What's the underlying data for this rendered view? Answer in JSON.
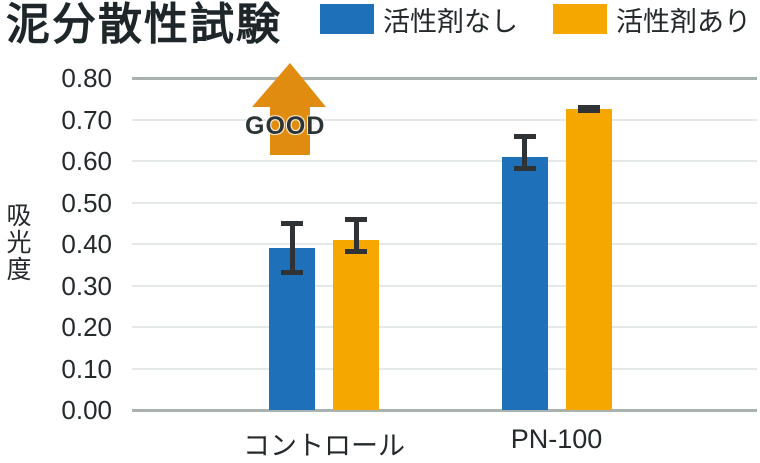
{
  "title": "泥分散性試験",
  "legend": [
    {
      "label": "活性剤なし",
      "color": "#1e70b8"
    },
    {
      "label": "活性剤あり",
      "color": "#f5a700"
    }
  ],
  "annotation": {
    "text": "GOOD",
    "arrow_color": "#df8c10",
    "text_color": "#2d3436"
  },
  "chart_data": {
    "type": "bar",
    "title": "泥分散性試験",
    "categories": [
      "コントロール",
      "PN-100"
    ],
    "series": [
      {
        "name": "活性剤なし",
        "color": "#1e70b8",
        "values": [
          0.39,
          0.61
        ],
        "error_low": [
          0.325,
          0.575
        ],
        "error_high": [
          0.455,
          0.665
        ]
      },
      {
        "name": "活性剤あり",
        "color": "#f5a700",
        "values": [
          0.41,
          0.725
        ],
        "error_low": [
          0.375,
          0.715
        ],
        "error_high": [
          0.465,
          0.735
        ]
      }
    ],
    "xlabel": "",
    "ylabel": "吸光度",
    "ylim": [
      0,
      0.8
    ],
    "ytick_step": 0.1,
    "ytick_labels": [
      "0.00",
      "0.10",
      "0.20",
      "0.30",
      "0.40",
      "0.50",
      "0.60",
      "0.70",
      "0.80"
    ],
    "grid": true,
    "legend_position": "top-right",
    "error_bar_color": "#2f3335",
    "gridline_color": "#e4e8e8",
    "axis_line_color": "#a9b1b1"
  }
}
